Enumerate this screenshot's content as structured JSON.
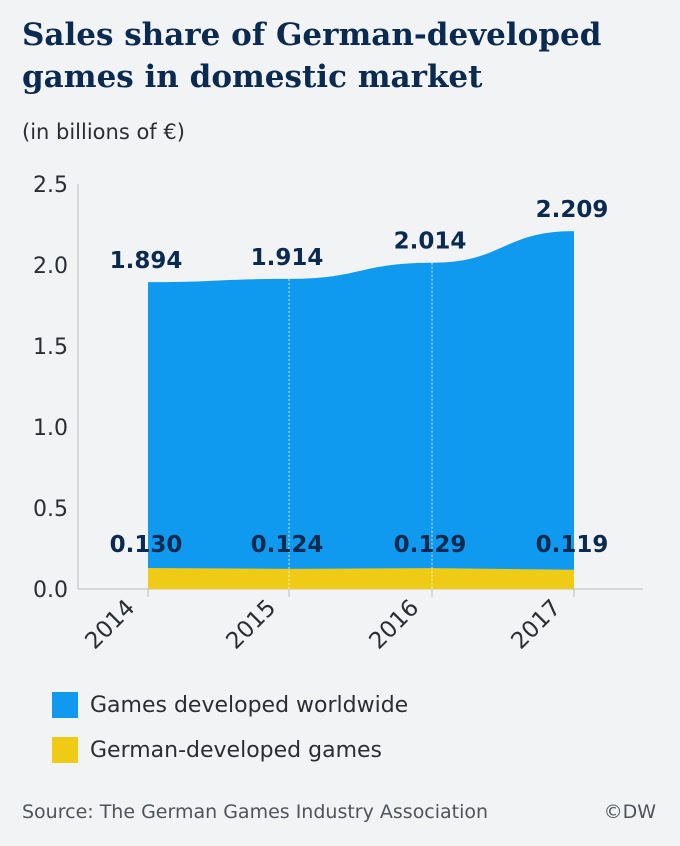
{
  "header": {
    "title": "Sales share of German-developed games in domestic market",
    "subtitle": "(in billions of €)"
  },
  "colors": {
    "worldwide": "#0f9af0",
    "german": "#f0cb16",
    "label": "#0b2a4f",
    "axis": "#2a2e33",
    "grid": "#c9ccd1"
  },
  "chart_data": {
    "type": "area",
    "categories": [
      "2014",
      "2015",
      "2016",
      "2017"
    ],
    "series": [
      {
        "name": "Games developed worldwide",
        "values": [
          1.894,
          1.914,
          2.014,
          2.209
        ],
        "labels": [
          "1.894",
          "1.914",
          "2.014",
          "2.209"
        ]
      },
      {
        "name": "German-developed games",
        "values": [
          0.13,
          0.124,
          0.129,
          0.119
        ],
        "labels": [
          "0.130",
          "0.124",
          "0.129",
          "0.119"
        ]
      }
    ],
    "y_ticks": [
      "0.0",
      "0.5",
      "1.0",
      "1.5",
      "2.0",
      "2.5"
    ],
    "y_tick_values": [
      0,
      0.5,
      1.0,
      1.5,
      2.0,
      2.5
    ],
    "ylim": [
      0,
      2.5
    ],
    "title": "Sales share of German-developed games in domestic market",
    "ylabel": "(in billions of €)",
    "xlabel": "",
    "legend_position": "bottom-left",
    "grid": false
  },
  "legend": [
    {
      "label": "Games developed worldwide",
      "color_key": "worldwide"
    },
    {
      "label": "German-developed games",
      "color_key": "german"
    }
  ],
  "footer": {
    "source": "Source: The German Games Industry Association",
    "credit": "©DW"
  }
}
